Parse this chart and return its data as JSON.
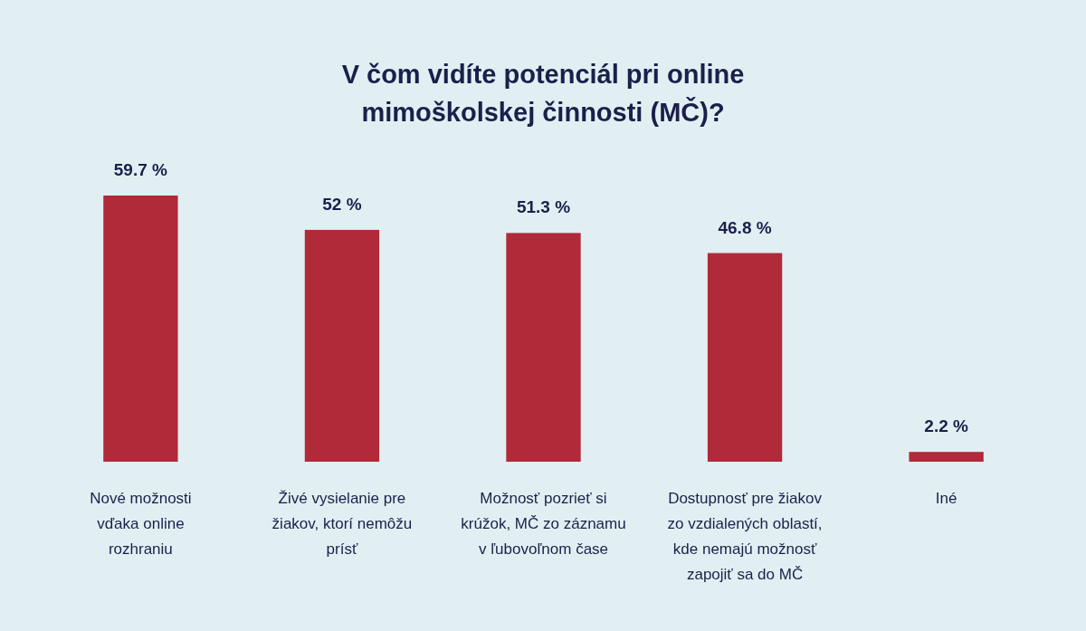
{
  "chart_data": {
    "type": "bar",
    "title": "V čom vidíte potenciál pri online\nmimoškolskej činnosti (MČ)?",
    "categories": [
      "Nové možnosti\nvďaka online\nrozhraniu",
      "Živé vysielanie pre\nžiakov, ktorí nemôžu\nprísť",
      "Možnosť pozrieť si\nkrúžok, MČ zo záznamu\nv ľubovoľnom čase",
      "Dostupnosť pre žiakov\nzo vzdialených oblastí,\nkde nemajú možnosť\nzapojiť sa do MČ",
      "Iné"
    ],
    "values": [
      59.7,
      52,
      51.3,
      46.8,
      2.2
    ],
    "value_labels": [
      "59.7 %",
      "52 %",
      "51.3 %",
      "46.8 %",
      "2.2 %"
    ],
    "color": "#b02a3a",
    "ylim": [
      0,
      59.7
    ],
    "tick_labels": "x"
  }
}
